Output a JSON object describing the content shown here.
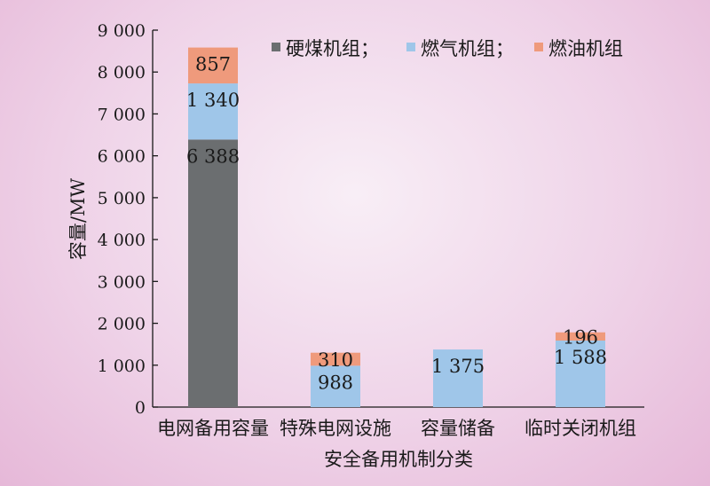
{
  "chart_data": {
    "type": "bar",
    "stacked": true,
    "xlabel": "安全备用机制分类",
    "ylabel": "容量/MW",
    "ylim": [
      0,
      9000
    ],
    "yticks": [
      0,
      1000,
      2000,
      3000,
      4000,
      5000,
      6000,
      7000,
      8000,
      9000
    ],
    "ytick_labels": [
      "0",
      "1 000",
      "2 000",
      "3 000",
      "4 000",
      "5 000",
      "6 000",
      "7 000",
      "8 000",
      "9 000"
    ],
    "categories": [
      "电网备用容量",
      "特殊电网设施",
      "容量储备",
      "临时关闭机组"
    ],
    "series": [
      {
        "name": "硬煤机组",
        "color": "#6b6e70",
        "values": [
          6388,
          0,
          0,
          0
        ],
        "labels": [
          "6 388",
          "",
          "",
          ""
        ]
      },
      {
        "name": "燃气机组",
        "color": "#9fc6e9",
        "values": [
          1340,
          988,
          1375,
          1588
        ],
        "labels": [
          "1 340",
          "988",
          "1 375",
          "1 588"
        ]
      },
      {
        "name": "燃油机组",
        "color": "#ef9a7c",
        "values": [
          857,
          310,
          0,
          196
        ],
        "labels": [
          "857",
          "310",
          "",
          "196"
        ]
      }
    ],
    "legend": {
      "position": "top-right",
      "entries": [
        "硬煤机组；",
        "燃气机组；",
        "燃油机组"
      ]
    },
    "grid": false
  }
}
